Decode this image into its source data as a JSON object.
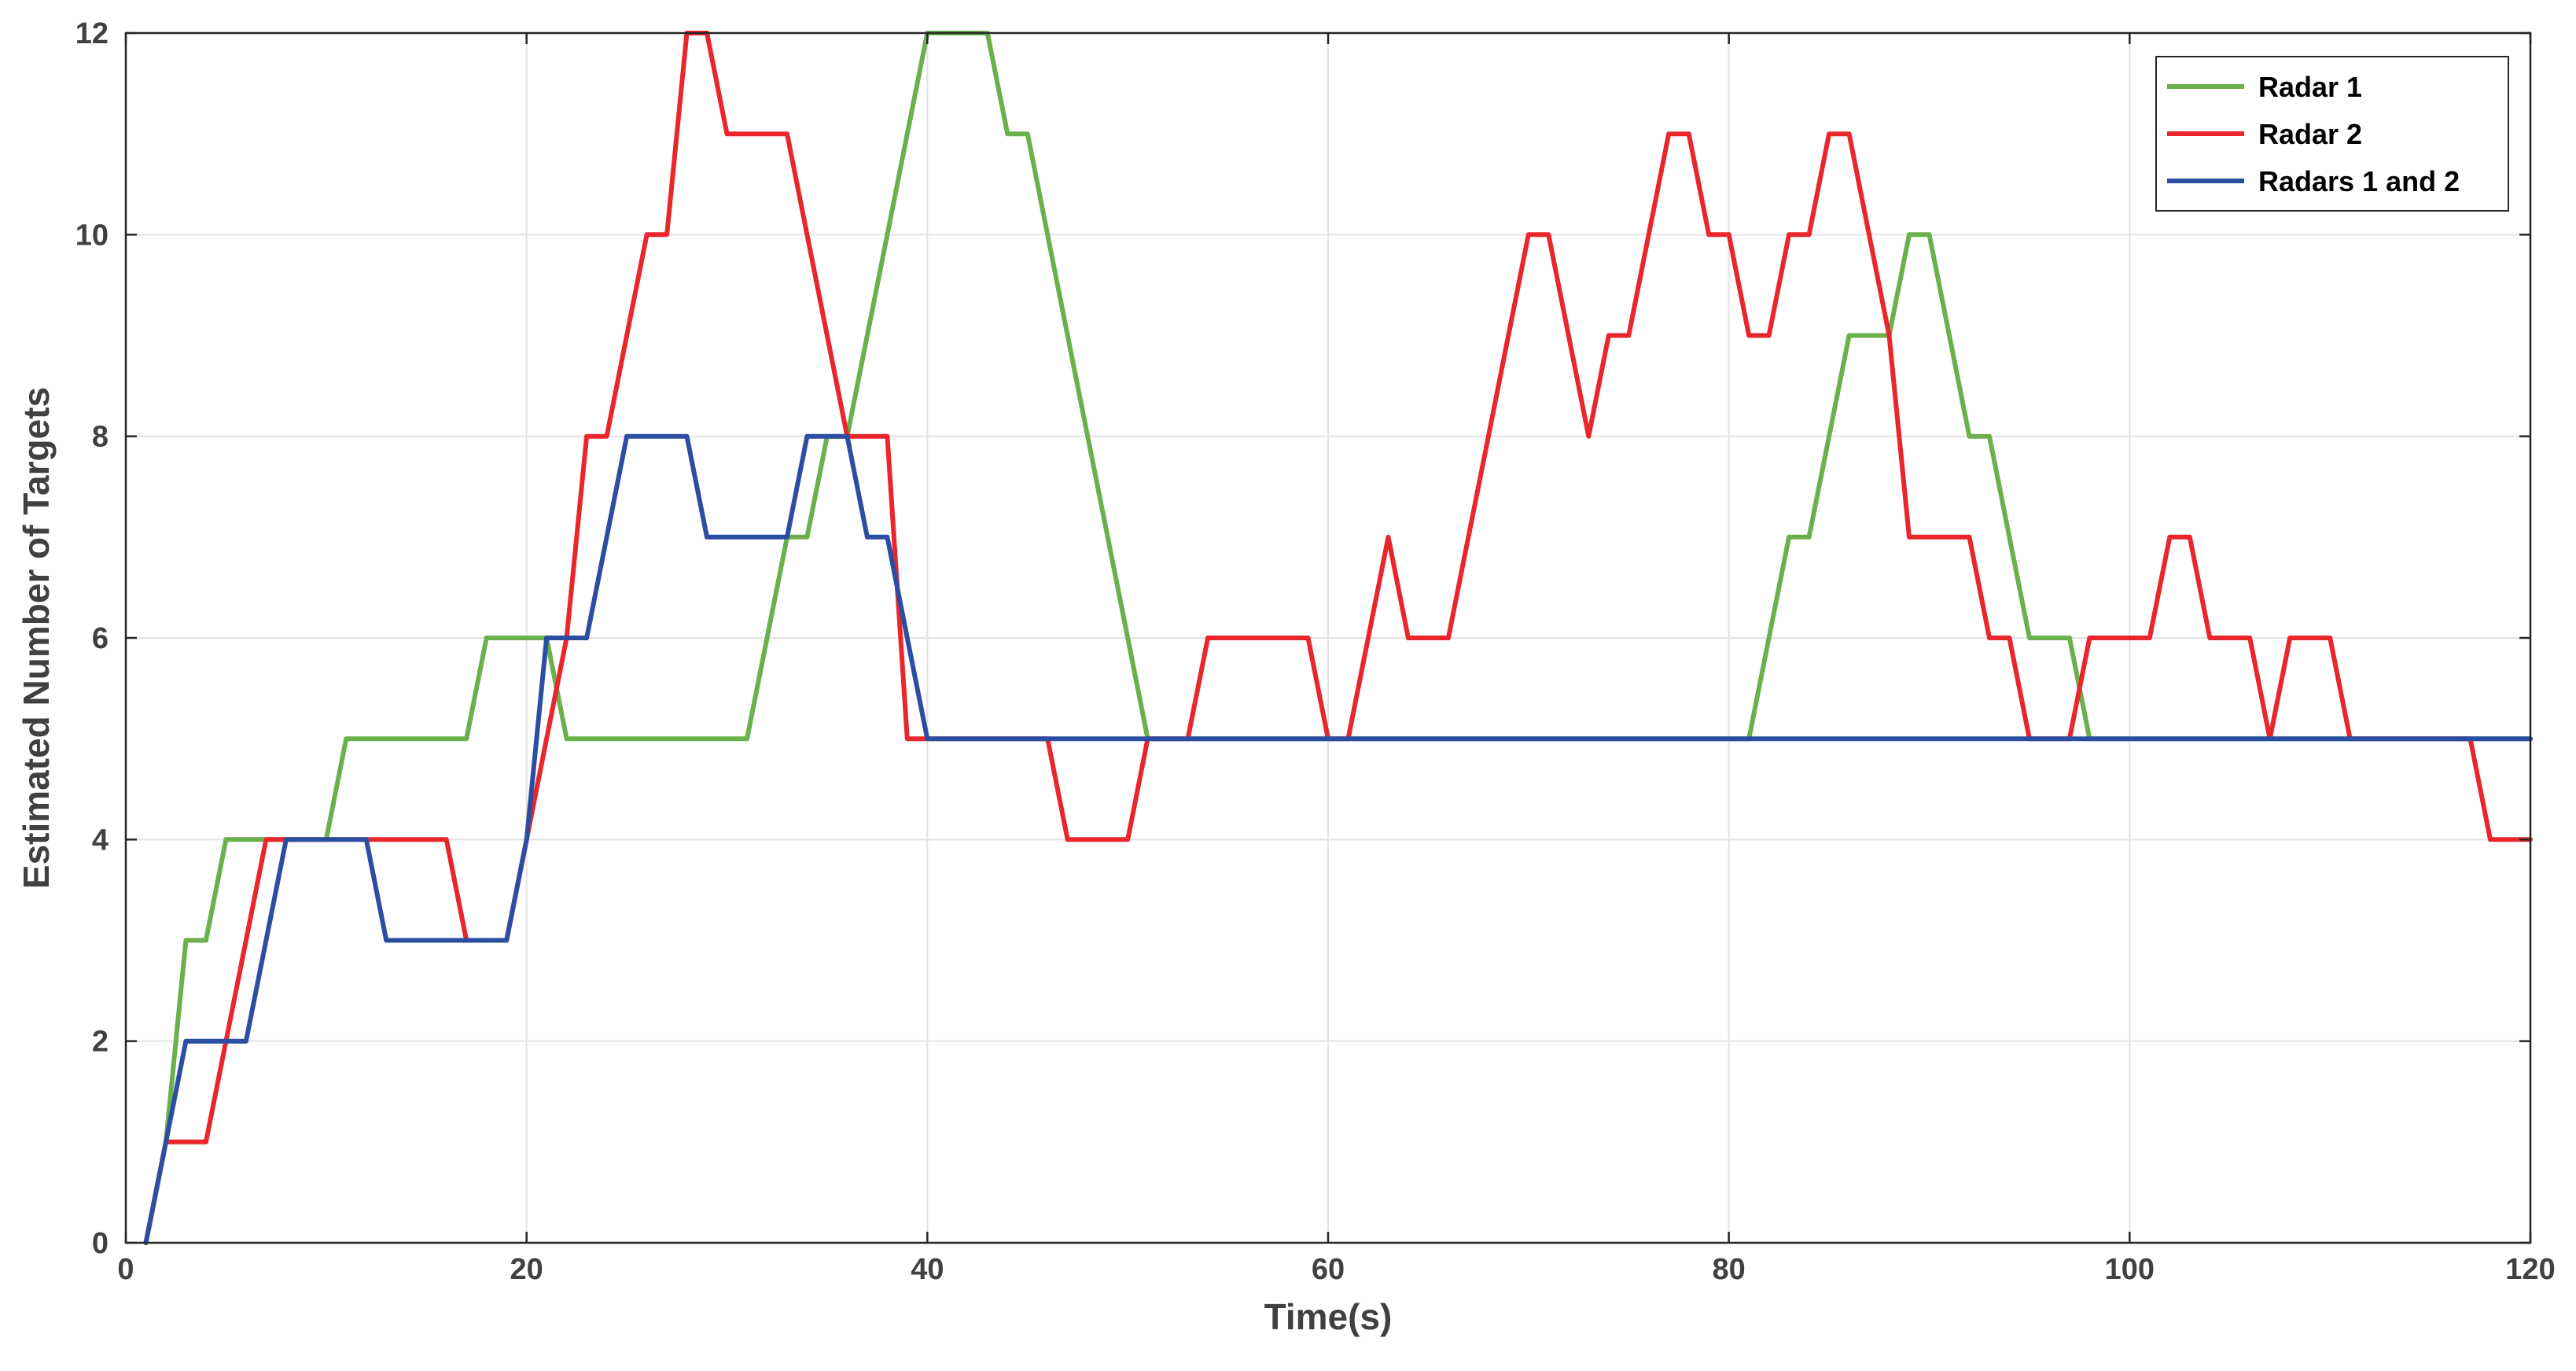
{
  "chart_data": {
    "type": "line",
    "xlabel": "Time(s)",
    "ylabel": "Estimated Number of Targets",
    "xlim": [
      0,
      120
    ],
    "ylim": [
      0,
      12
    ],
    "xticks": [
      0,
      20,
      40,
      60,
      80,
      100,
      120
    ],
    "yticks": [
      0,
      2,
      4,
      6,
      8,
      10,
      12
    ],
    "grid": true,
    "legend_position": "top-right",
    "series": [
      {
        "name": "Radar 1",
        "color": "#6ab04c",
        "x": [
          1,
          2,
          3,
          4,
          5,
          6,
          7,
          8,
          9,
          10,
          11,
          12,
          13,
          14,
          15,
          16,
          17,
          18,
          19,
          20,
          21,
          22,
          23,
          24,
          25,
          26,
          27,
          28,
          29,
          30,
          31,
          32,
          33,
          34,
          35,
          36,
          37,
          38,
          39,
          40,
          41,
          42,
          43,
          44,
          45,
          46,
          47,
          48,
          49,
          50,
          51,
          52,
          53,
          54,
          55,
          56,
          57,
          58,
          59,
          60,
          61,
          62,
          63,
          64,
          65,
          66,
          67,
          68,
          69,
          70,
          71,
          72,
          73,
          74,
          75,
          76,
          77,
          78,
          79,
          80,
          81,
          82,
          83,
          84,
          85,
          86,
          87,
          88,
          89,
          90,
          91,
          92,
          93,
          94,
          95,
          96,
          97,
          98,
          99,
          100,
          101,
          102,
          103,
          104,
          105,
          106,
          107,
          108,
          109,
          110,
          111,
          112,
          113,
          114,
          115,
          116,
          117,
          118,
          119,
          120
        ],
        "y": [
          0,
          1,
          3,
          3,
          4,
          4,
          4,
          4,
          4,
          4,
          5,
          5,
          5,
          5,
          5,
          5,
          5,
          6,
          6,
          6,
          6,
          5,
          5,
          5,
          5,
          5,
          5,
          5,
          5,
          5,
          5,
          6,
          7,
          7,
          8,
          8,
          9,
          10,
          11,
          12,
          12,
          12,
          12,
          11,
          11,
          10,
          9,
          8,
          7,
          6,
          5,
          5,
          5,
          5,
          5,
          5,
          5,
          5,
          5,
          5,
          5,
          5,
          5,
          5,
          5,
          5,
          5,
          5,
          5,
          5,
          5,
          5,
          5,
          5,
          5,
          5,
          5,
          5,
          5,
          5,
          5,
          6,
          7,
          7,
          8,
          9,
          9,
          9,
          10,
          10,
          9,
          8,
          8,
          7,
          6,
          6,
          6,
          5,
          5,
          5,
          5,
          5,
          5,
          5,
          5,
          5,
          5,
          5,
          5,
          5,
          5,
          5,
          5,
          5,
          5,
          5,
          5,
          5,
          5,
          5
        ]
      },
      {
        "name": "Radar 2",
        "color": "#e8262b",
        "x": [
          1,
          2,
          3,
          4,
          5,
          6,
          7,
          8,
          9,
          10,
          11,
          12,
          13,
          14,
          15,
          16,
          17,
          18,
          19,
          20,
          21,
          22,
          23,
          24,
          25,
          26,
          27,
          28,
          29,
          30,
          31,
          32,
          33,
          34,
          35,
          36,
          37,
          38,
          39,
          40,
          41,
          42,
          43,
          44,
          45,
          46,
          47,
          48,
          49,
          50,
          51,
          52,
          53,
          54,
          55,
          56,
          57,
          58,
          59,
          60,
          61,
          62,
          63,
          64,
          65,
          66,
          67,
          68,
          69,
          70,
          71,
          72,
          73,
          74,
          75,
          76,
          77,
          78,
          79,
          80,
          81,
          82,
          83,
          84,
          85,
          86,
          87,
          88,
          89,
          90,
          91,
          92,
          93,
          94,
          95,
          96,
          97,
          98,
          99,
          100,
          101,
          102,
          103,
          104,
          105,
          106,
          107,
          108,
          109,
          110,
          111,
          112,
          113,
          114,
          115,
          116,
          117,
          118,
          119,
          120
        ],
        "y": [
          0,
          1,
          1,
          1,
          2,
          3,
          4,
          4,
          4,
          4,
          4,
          4,
          4,
          4,
          4,
          4,
          3,
          3,
          3,
          4,
          5,
          6,
          8,
          8,
          9,
          10,
          10,
          12,
          12,
          11,
          11,
          11,
          11,
          10,
          9,
          8,
          8,
          8,
          5,
          5,
          5,
          5,
          5,
          5,
          5,
          5,
          4,
          4,
          4,
          4,
          5,
          5,
          5,
          6,
          6,
          6,
          6,
          6,
          6,
          5,
          5,
          6,
          7,
          6,
          6,
          6,
          7,
          8,
          9,
          10,
          10,
          9,
          8,
          9,
          9,
          10,
          11,
          11,
          10,
          10,
          9,
          9,
          10,
          10,
          11,
          11,
          10,
          9,
          7,
          7,
          7,
          7,
          6,
          6,
          5,
          5,
          5,
          6,
          6,
          6,
          6,
          7,
          7,
          6,
          6,
          6,
          5,
          6,
          6,
          6,
          5,
          5,
          5,
          5,
          5,
          5,
          5,
          4,
          4,
          4
        ]
      },
      {
        "name": "Radars 1 and 2",
        "color": "#2b4ea2",
        "x": [
          1,
          2,
          3,
          4,
          5,
          6,
          7,
          8,
          9,
          10,
          11,
          12,
          13,
          14,
          15,
          16,
          17,
          18,
          19,
          20,
          21,
          22,
          23,
          24,
          25,
          26,
          27,
          28,
          29,
          30,
          31,
          32,
          33,
          34,
          35,
          36,
          37,
          38,
          39,
          40,
          41,
          42,
          43,
          44,
          45,
          46,
          47,
          48,
          49,
          50,
          51,
          52,
          53,
          54,
          55,
          56,
          57,
          58,
          59,
          60,
          61,
          62,
          63,
          64,
          65,
          66,
          67,
          68,
          69,
          70,
          71,
          72,
          73,
          74,
          75,
          76,
          77,
          78,
          79,
          80,
          81,
          82,
          83,
          84,
          85,
          86,
          87,
          88,
          89,
          90,
          91,
          92,
          93,
          94,
          95,
          96,
          97,
          98,
          99,
          100,
          101,
          102,
          103,
          104,
          105,
          106,
          107,
          108,
          109,
          110,
          111,
          112,
          113,
          114,
          115,
          116,
          117,
          118,
          119,
          120
        ],
        "y": [
          0,
          1,
          2,
          2,
          2,
          2,
          3,
          4,
          4,
          4,
          4,
          4,
          3,
          3,
          3,
          3,
          3,
          3,
          3,
          4,
          6,
          6,
          6,
          7,
          8,
          8,
          8,
          8,
          7,
          7,
          7,
          7,
          7,
          8,
          8,
          8,
          7,
          7,
          6,
          5,
          5,
          5,
          5,
          5,
          5,
          5,
          5,
          5,
          5,
          5,
          5,
          5,
          5,
          5,
          5,
          5,
          5,
          5,
          5,
          5,
          5,
          5,
          5,
          5,
          5,
          5,
          5,
          5,
          5,
          5,
          5,
          5,
          5,
          5,
          5,
          5,
          5,
          5,
          5,
          5,
          5,
          5,
          5,
          5,
          5,
          5,
          5,
          5,
          5,
          5,
          5,
          5,
          5,
          5,
          5,
          5,
          5,
          5,
          5,
          5,
          5,
          5,
          5,
          5,
          5,
          5,
          5,
          5,
          5,
          5,
          5,
          5,
          5,
          5,
          5,
          5,
          5,
          5,
          5,
          5
        ]
      }
    ]
  }
}
